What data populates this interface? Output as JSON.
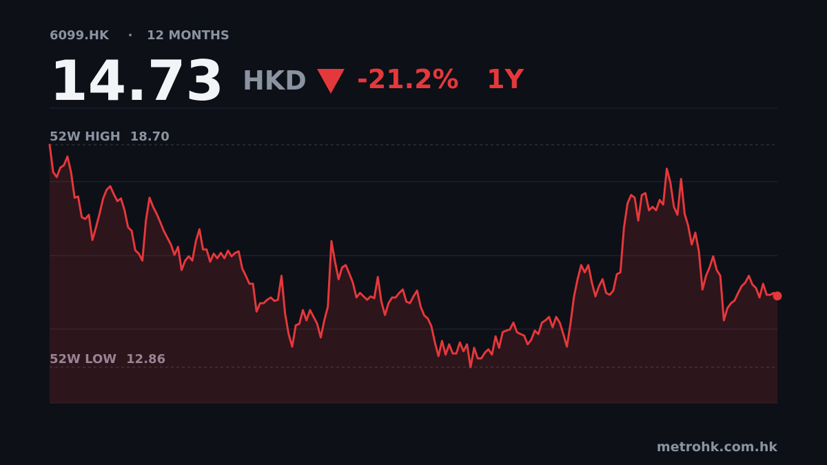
{
  "header": {
    "ticker": "6099.HK",
    "separator": "·",
    "period": "12 MONTHS",
    "price": "14.73",
    "currency": "HKD",
    "change": "-21.2%",
    "range": "1Y"
  },
  "footer": {
    "source": "metrohk.com.hk"
  },
  "chart_data": {
    "type": "line",
    "color": "#e5383b",
    "grid": true,
    "ylim": [
      11.92,
      19.66
    ],
    "yticks": [
      13.86,
      15.79,
      17.73
    ],
    "reference_lines": [
      {
        "name": "52W HIGH",
        "value": 18.7,
        "label": "18.70"
      },
      {
        "name": "52W LOW",
        "value": 12.86,
        "label": "12.86"
      }
    ],
    "values": [
      18.7,
      17.98,
      17.85,
      18.1,
      18.16,
      18.39,
      17.98,
      17.31,
      17.34,
      16.8,
      16.75,
      16.86,
      16.2,
      16.53,
      16.89,
      17.29,
      17.52,
      17.61,
      17.4,
      17.22,
      17.29,
      16.98,
      16.53,
      16.44,
      15.93,
      15.84,
      15.66,
      16.71,
      17.31,
      17.07,
      16.89,
      16.67,
      16.44,
      16.26,
      16.08,
      15.81,
      16.02,
      15.41,
      15.66,
      15.77,
      15.66,
      16.17,
      16.48,
      15.95,
      15.95,
      15.63,
      15.84,
      15.72,
      15.86,
      15.72,
      15.92,
      15.77,
      15.86,
      15.9,
      15.45,
      15.26,
      15.05,
      15.05,
      14.32,
      14.54,
      14.54,
      14.63,
      14.69,
      14.6,
      14.63,
      15.26,
      14.27,
      13.73,
      13.4,
      13.96,
      14.0,
      14.36,
      14.09,
      14.36,
      14.18,
      14.0,
      13.64,
      14.09,
      14.45,
      16.17,
      15.63,
      15.17,
      15.48,
      15.54,
      15.32,
      15.08,
      14.69,
      14.81,
      14.72,
      14.63,
      14.72,
      14.67,
      15.23,
      14.58,
      14.23,
      14.54,
      14.69,
      14.69,
      14.81,
      14.9,
      14.58,
      14.54,
      14.72,
      14.87,
      14.45,
      14.22,
      14.14,
      13.94,
      13.51,
      13.15,
      13.55,
      13.19,
      13.46,
      13.22,
      13.22,
      13.51,
      13.28,
      13.46,
      12.86,
      13.37,
      13.09,
      13.09,
      13.24,
      13.33,
      13.19,
      13.67,
      13.37,
      13.78,
      13.82,
      13.85,
      14.03,
      13.78,
      13.73,
      13.69,
      13.46,
      13.58,
      13.82,
      13.73,
      14.03,
      14.09,
      14.18,
      13.91,
      14.18,
      14.03,
      13.73,
      13.4,
      14.0,
      14.72,
      15.17,
      15.54,
      15.35,
      15.54,
      15.08,
      14.72,
      14.99,
      15.17,
      14.81,
      14.76,
      14.87,
      15.3,
      15.35,
      16.53,
      17.16,
      17.38,
      17.31,
      16.71,
      17.38,
      17.43,
      16.98,
      17.07,
      16.98,
      17.25,
      17.13,
      18.07,
      17.71,
      17.07,
      16.86,
      17.8,
      16.89,
      16.57,
      16.08,
      16.39,
      15.9,
      14.9,
      15.26,
      15.48,
      15.77,
      15.41,
      15.26,
      14.09,
      14.41,
      14.54,
      14.61,
      14.81,
      14.99,
      15.08,
      15.26,
      15.03,
      14.94,
      14.69,
      15.05,
      14.76,
      14.76,
      14.81,
      14.73
    ]
  }
}
